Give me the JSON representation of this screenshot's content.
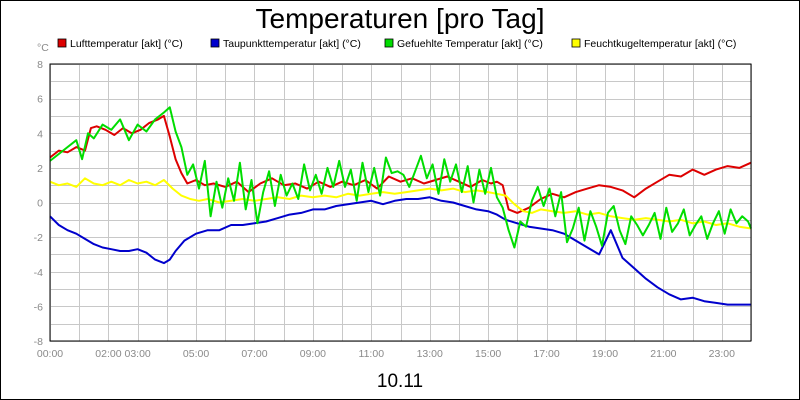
{
  "chart_data": {
    "type": "line",
    "title": "Temperaturen [pro Tag]",
    "xlabel": "10.11",
    "ylabel": "°C",
    "ylim": [
      -8,
      8
    ],
    "yticks": [
      8,
      6,
      4,
      2,
      0,
      -2,
      -4,
      -6,
      -8
    ],
    "xlim": [
      0,
      24
    ],
    "xticks": [
      {
        "h": 0,
        "label": "00:00"
      },
      {
        "h": 2,
        "label": "02:00"
      },
      {
        "h": 3,
        "label": "03:00"
      },
      {
        "h": 5,
        "label": "05:00"
      },
      {
        "h": 7,
        "label": "07:00"
      },
      {
        "h": 9,
        "label": "09:00"
      },
      {
        "h": 11,
        "label": "11:00"
      },
      {
        "h": 13,
        "label": "13:00"
      },
      {
        "h": 15,
        "label": "15:00"
      },
      {
        "h": 17,
        "label": "17:00"
      },
      {
        "h": 19,
        "label": "19:00"
      },
      {
        "h": 21,
        "label": "21:00"
      },
      {
        "h": 23,
        "label": "23:00"
      }
    ],
    "grid": true,
    "legend_position": "top",
    "series": [
      {
        "name": "Lufttemperatur [akt] (°C)",
        "color": "#dd0000",
        "x": [
          0,
          0.3,
          0.6,
          0.9,
          1.2,
          1.4,
          1.6,
          1.9,
          2.2,
          2.5,
          2.8,
          3.1,
          3.4,
          3.7,
          3.9,
          4.1,
          4.3,
          4.5,
          4.7,
          5.0,
          5.3,
          5.6,
          6.0,
          6.4,
          6.8,
          7.2,
          7.6,
          8.0,
          8.4,
          8.8,
          9.2,
          9.6,
          10.0,
          10.4,
          10.8,
          11.2,
          11.6,
          12.0,
          12.4,
          12.8,
          13.2,
          13.6,
          14.0,
          14.4,
          14.8,
          15.1,
          15.3,
          15.5,
          15.7,
          16.0,
          16.4,
          16.8,
          17.2,
          17.6,
          18.0,
          18.4,
          18.8,
          19.2,
          19.6,
          20.0,
          20.4,
          20.8,
          21.2,
          21.6,
          22.0,
          22.4,
          22.8,
          23.2,
          23.6,
          24.0
        ],
        "y": [
          2.6,
          3.0,
          2.9,
          3.2,
          3.0,
          4.3,
          4.4,
          4.2,
          3.9,
          4.3,
          4.0,
          4.2,
          4.6,
          4.8,
          5.0,
          3.8,
          2.5,
          1.7,
          1.1,
          1.3,
          1.0,
          1.1,
          0.9,
          1.2,
          0.6,
          1.1,
          1.4,
          1.0,
          1.1,
          0.8,
          1.2,
          0.9,
          1.2,
          1.0,
          1.3,
          0.8,
          1.5,
          1.2,
          1.4,
          1.1,
          1.3,
          1.5,
          1.2,
          0.9,
          1.3,
          1.1,
          1.2,
          1.0,
          -0.4,
          -0.6,
          -0.3,
          0.2,
          0.5,
          0.3,
          0.6,
          0.8,
          1.0,
          0.9,
          0.7,
          0.3,
          0.8,
          1.2,
          1.6,
          1.5,
          1.9,
          1.6,
          1.9,
          2.1,
          2.0,
          2.3
        ]
      },
      {
        "name": "Taupunkttemperatur [akt] (°C)",
        "color": "#0000cc",
        "x": [
          0,
          0.3,
          0.6,
          0.9,
          1.2,
          1.5,
          1.8,
          2.1,
          2.4,
          2.7,
          3.0,
          3.3,
          3.6,
          3.9,
          4.1,
          4.3,
          4.6,
          5.0,
          5.4,
          5.8,
          6.2,
          6.6,
          7.0,
          7.4,
          7.8,
          8.2,
          8.6,
          9.0,
          9.4,
          9.8,
          10.2,
          10.6,
          11.0,
          11.4,
          11.8,
          12.2,
          12.6,
          13.0,
          13.4,
          13.8,
          14.2,
          14.6,
          15.0,
          15.3,
          15.6,
          16.0,
          16.4,
          16.8,
          17.2,
          17.6,
          18.0,
          18.4,
          18.8,
          19.2,
          19.6,
          20.0,
          20.4,
          20.8,
          21.2,
          21.6,
          22.0,
          22.4,
          22.8,
          23.2,
          23.6,
          24.0
        ],
        "y": [
          -0.8,
          -1.3,
          -1.6,
          -1.8,
          -2.1,
          -2.4,
          -2.6,
          -2.7,
          -2.8,
          -2.8,
          -2.7,
          -2.9,
          -3.3,
          -3.5,
          -3.3,
          -2.8,
          -2.2,
          -1.8,
          -1.6,
          -1.6,
          -1.3,
          -1.3,
          -1.2,
          -1.1,
          -0.9,
          -0.7,
          -0.6,
          -0.4,
          -0.4,
          -0.2,
          -0.1,
          0.0,
          0.1,
          -0.1,
          0.1,
          0.2,
          0.2,
          0.3,
          0.1,
          0.0,
          -0.2,
          -0.4,
          -0.5,
          -0.7,
          -1.0,
          -1.2,
          -1.4,
          -1.5,
          -1.6,
          -1.8,
          -2.2,
          -2.6,
          -3.0,
          -1.6,
          -3.2,
          -3.8,
          -4.4,
          -4.9,
          -5.3,
          -5.6,
          -5.5,
          -5.7,
          -5.8,
          -5.9,
          -5.9,
          -5.9
        ]
      },
      {
        "name": "Gefuehlte Temperatur [akt] (°C)",
        "color": "#00dd00",
        "x": [
          0,
          0.3,
          0.6,
          0.9,
          1.1,
          1.3,
          1.5,
          1.8,
          2.1,
          2.4,
          2.7,
          3.0,
          3.3,
          3.6,
          3.9,
          4.1,
          4.3,
          4.5,
          4.7,
          4.9,
          5.1,
          5.3,
          5.5,
          5.7,
          5.9,
          6.1,
          6.3,
          6.5,
          6.7,
          6.9,
          7.1,
          7.3,
          7.5,
          7.7,
          7.9,
          8.1,
          8.3,
          8.5,
          8.7,
          8.9,
          9.1,
          9.3,
          9.5,
          9.7,
          9.9,
          10.1,
          10.3,
          10.5,
          10.7,
          10.9,
          11.1,
          11.3,
          11.5,
          11.7,
          11.9,
          12.1,
          12.3,
          12.5,
          12.7,
          12.9,
          13.1,
          13.3,
          13.5,
          13.7,
          13.9,
          14.1,
          14.3,
          14.5,
          14.7,
          14.9,
          15.1,
          15.3,
          15.5,
          15.7,
          15.9,
          16.1,
          16.3,
          16.5,
          16.7,
          16.9,
          17.1,
          17.3,
          17.5,
          17.7,
          17.9,
          18.1,
          18.3,
          18.5,
          18.7,
          18.9,
          19.1,
          19.3,
          19.5,
          19.7,
          19.9,
          20.1,
          20.3,
          20.5,
          20.7,
          20.9,
          21.1,
          21.3,
          21.5,
          21.7,
          21.9,
          22.1,
          22.3,
          22.5,
          22.7,
          22.9,
          23.1,
          23.3,
          23.5,
          23.7,
          23.9,
          24.0
        ],
        "y": [
          2.4,
          2.8,
          3.2,
          3.6,
          2.5,
          4.0,
          3.7,
          4.5,
          4.2,
          4.8,
          3.6,
          4.5,
          4.1,
          4.8,
          5.2,
          5.5,
          4.1,
          3.2,
          1.6,
          2.2,
          0.8,
          2.4,
          -0.8,
          1.2,
          -0.3,
          1.4,
          0.1,
          2.3,
          -0.4,
          1.3,
          -1.2,
          0.6,
          1.8,
          -0.2,
          1.6,
          0.4,
          1.1,
          0.2,
          2.2,
          0.7,
          1.6,
          0.5,
          2.0,
          0.9,
          2.4,
          0.9,
          1.9,
          0.1,
          2.3,
          0.6,
          2.0,
          0.4,
          2.6,
          1.7,
          1.8,
          1.6,
          0.9,
          1.8,
          2.7,
          1.4,
          2.2,
          0.5,
          2.5,
          1.2,
          2.2,
          0.6,
          2.1,
          0.0,
          1.9,
          0.5,
          2.0,
          0.3,
          -0.3,
          -1.6,
          -2.6,
          -1.1,
          -1.4,
          0.1,
          0.9,
          -0.2,
          0.8,
          -0.8,
          0.6,
          -2.3,
          -1.5,
          -0.3,
          -2.2,
          -0.5,
          -1.4,
          -2.5,
          -0.6,
          -0.2,
          -1.6,
          -2.4,
          -0.8,
          -1.3,
          -1.9,
          -1.3,
          -0.6,
          -2.1,
          -0.3,
          -1.7,
          -1.2,
          -0.4,
          -1.9,
          -1.3,
          -0.8,
          -2.1,
          -1.2,
          -0.5,
          -1.8,
          -0.4,
          -1.2,
          -0.8,
          -1.1,
          -1.5
        ]
      },
      {
        "name": "Feuchtkugeltemperatur [akt] (°C)",
        "color": "#ffff00",
        "x": [
          0,
          0.3,
          0.6,
          0.9,
          1.2,
          1.5,
          1.8,
          2.1,
          2.4,
          2.7,
          3.0,
          3.3,
          3.6,
          3.9,
          4.2,
          4.5,
          4.8,
          5.1,
          5.4,
          5.8,
          6.2,
          6.6,
          7.0,
          7.4,
          7.8,
          8.2,
          8.6,
          9.0,
          9.4,
          9.8,
          10.2,
          10.6,
          11.0,
          11.4,
          11.8,
          12.2,
          12.6,
          13.0,
          13.4,
          13.8,
          14.2,
          14.6,
          15.0,
          15.3,
          15.6,
          15.9,
          16.2,
          16.5,
          16.8,
          17.2,
          17.6,
          18.0,
          18.4,
          18.8,
          19.2,
          19.6,
          20.0,
          20.4,
          20.8,
          21.2,
          21.6,
          22.0,
          22.4,
          22.8,
          23.2,
          23.6,
          24.0
        ],
        "y": [
          1.2,
          1.0,
          1.1,
          0.9,
          1.4,
          1.1,
          1.0,
          1.2,
          1.0,
          1.3,
          1.1,
          1.2,
          1.0,
          1.3,
          0.8,
          0.4,
          0.2,
          0.1,
          0.2,
          0.0,
          0.1,
          0.2,
          0.1,
          0.2,
          0.3,
          0.2,
          0.4,
          0.3,
          0.4,
          0.3,
          0.5,
          0.4,
          0.5,
          0.6,
          0.5,
          0.6,
          0.7,
          0.8,
          0.7,
          0.8,
          0.6,
          0.7,
          0.6,
          0.5,
          0.4,
          -0.1,
          -0.5,
          -0.6,
          -0.4,
          -0.5,
          -0.6,
          -0.5,
          -0.7,
          -0.6,
          -0.8,
          -0.9,
          -1.0,
          -0.9,
          -1.0,
          -1.1,
          -1.0,
          -1.2,
          -1.1,
          -1.3,
          -1.2,
          -1.4,
          -1.5
        ]
      }
    ]
  }
}
